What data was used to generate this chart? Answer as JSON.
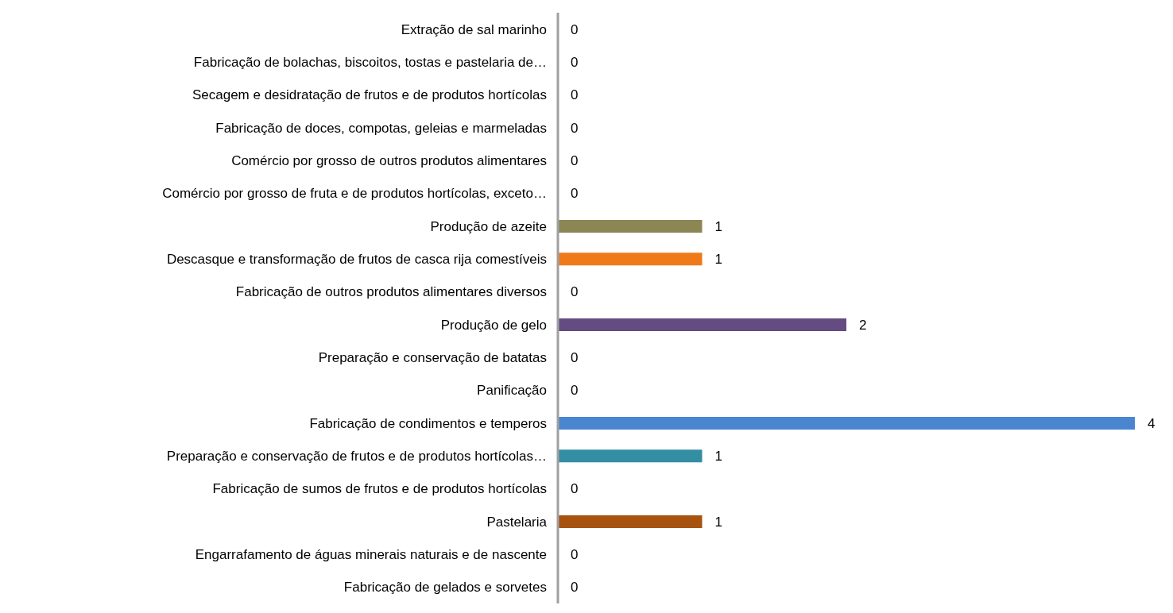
{
  "chart_data": {
    "type": "bar",
    "orientation": "horizontal",
    "data_labels": true,
    "categories": [
      "Extração de sal marinho",
      "Fabricação de bolachas, biscoitos, tostas e pastelaria de…",
      "Secagem e desidratação de frutos e de produtos hortícolas",
      "Fabricação de doces, compotas, geleias e marmeladas",
      "Comércio por grosso de outros produtos alimentares",
      "Comércio por grosso de fruta e de produtos hortícolas, exceto…",
      "Produção de azeite",
      "Descasque e transformação de frutos de casca rija comestíveis",
      "Fabricação de outros produtos alimentares diversos",
      "Produção de gelo",
      "Preparação e conservação de batatas",
      "Panificação",
      "Fabricação de condimentos e temperos",
      "Preparação e conservação de frutos e de produtos hortícolas…",
      "Fabricação de sumos de frutos e de produtos hortícolas",
      "Pastelaria",
      "Engarrafamento de águas minerais naturais e de nascente",
      "Fabricação de gelados e sorvetes"
    ],
    "values": [
      0,
      0,
      0,
      0,
      0,
      0,
      1,
      1,
      0,
      2,
      0,
      0,
      4,
      1,
      0,
      1,
      0,
      0
    ],
    "colors": [
      "#4f81bd",
      "#4f81bd",
      "#4f81bd",
      "#4f81bd",
      "#4f81bd",
      "#4f81bd",
      "#8c8654",
      "#f07a1a",
      "#4f81bd",
      "#644c82",
      "#4f81bd",
      "#4f81bd",
      "#4a86d0",
      "#338ea3",
      "#4f81bd",
      "#a8520f",
      "#4f81bd",
      "#4f81bd"
    ]
  }
}
